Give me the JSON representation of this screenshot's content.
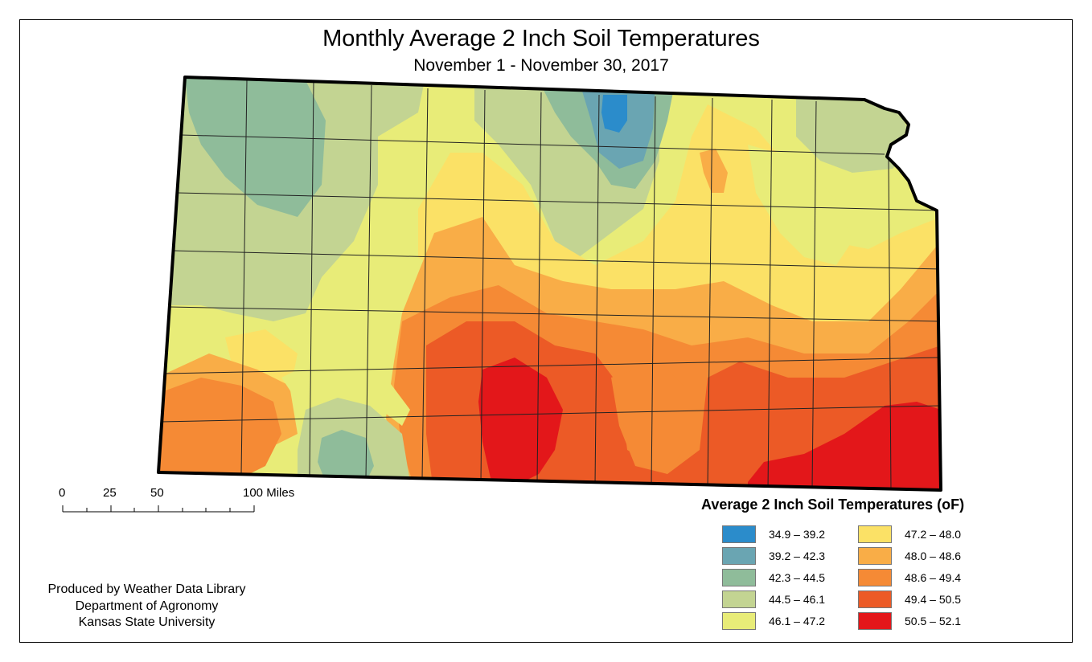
{
  "title": "Monthly Average 2 Inch Soil Temperatures",
  "subtitle": "November 1 - November 30, 2017",
  "scale_bar": {
    "labels": [
      "0",
      "25",
      "50",
      "100 Miles"
    ],
    "values_miles": [
      0,
      25,
      50,
      100
    ]
  },
  "credits": [
    "Produced by Weather Data Library",
    "Department of Agronomy",
    "Kansas State University"
  ],
  "legend": {
    "title": "Average 2 Inch Soil Temperatures (oF)",
    "items": [
      {
        "label": "34.9 – 39.2",
        "color": "#2b8ccb"
      },
      {
        "label": "39.2 – 42.3",
        "color": "#6aa5b2"
      },
      {
        "label": "42.3 – 44.5",
        "color": "#8fbc9a"
      },
      {
        "label": "44.5 – 46.1",
        "color": "#c3d492"
      },
      {
        "label": "46.1 – 47.2",
        "color": "#e8ec78"
      },
      {
        "label": "47.2 – 48.0",
        "color": "#fbe166"
      },
      {
        "label": "48.0 – 48.6",
        "color": "#f9ad47"
      },
      {
        "label": "48.6 – 49.4",
        "color": "#f58a35"
      },
      {
        "label": "49.4 – 50.5",
        "color": "#ec5a26"
      },
      {
        "label": "50.5 – 52.1",
        "color": "#e3171a"
      }
    ]
  }
}
